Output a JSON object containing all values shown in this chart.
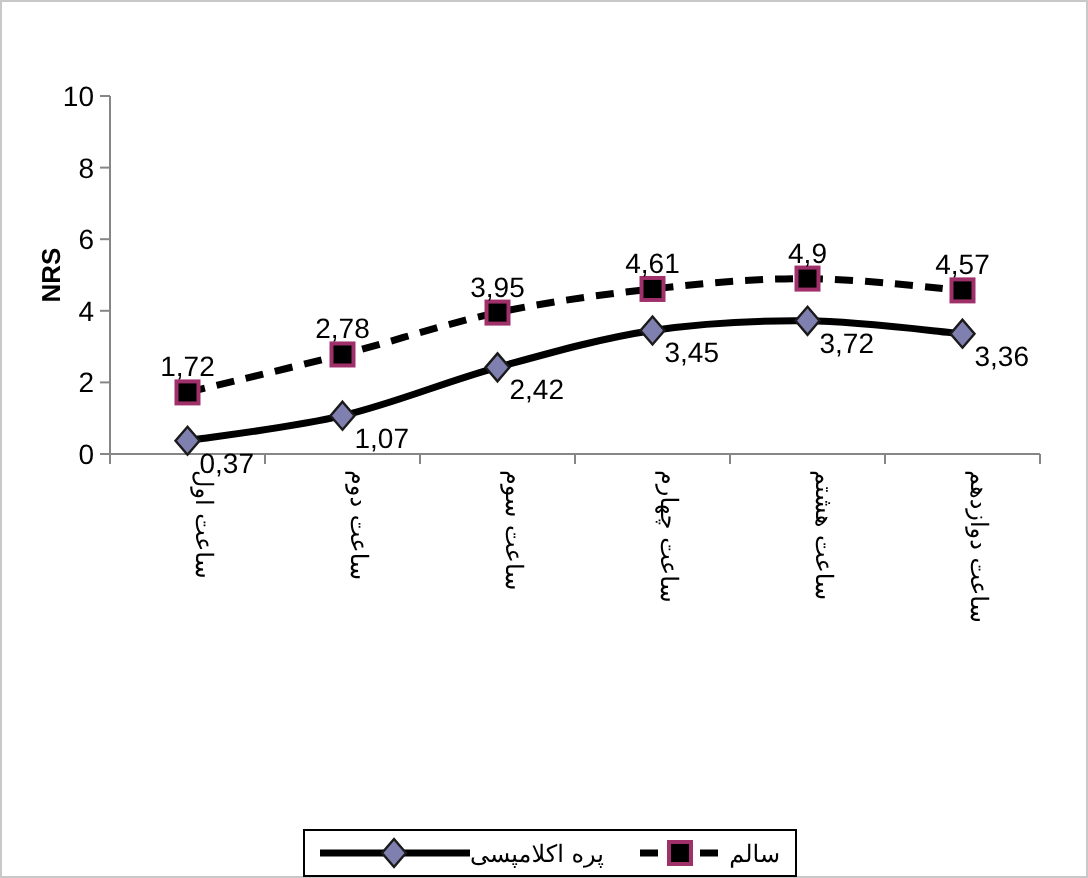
{
  "chart_data": {
    "type": "line",
    "ylabel": "NRS",
    "categories": [
      "ساعت اول",
      "ساعت دوم",
      "ساعت سوم",
      "ساعت چهارم",
      "ساعت هشتم",
      "ساعت دوازدهم"
    ],
    "series": [
      {
        "name": "پره اکلامپسی",
        "color": "#000000",
        "marker": "diamond",
        "line_style": "solid",
        "values": [
          0.37,
          1.07,
          2.42,
          3.45,
          3.72,
          3.36
        ],
        "value_labels": [
          "0,37",
          "1,07",
          "2,42",
          "3,45",
          "3,72",
          "3,36"
        ]
      },
      {
        "name": "سالم",
        "color": "#000000",
        "marker": "square",
        "line_style": "dashed",
        "values": [
          1.72,
          2.78,
          3.95,
          4.61,
          4.9,
          4.57
        ],
        "value_labels": [
          "1,72",
          "2,78",
          "3,95",
          "4,61",
          "4,9",
          "4,57"
        ]
      }
    ],
    "ylim": [
      0,
      10
    ],
    "yticks": [
      0,
      2,
      4,
      6,
      8,
      10
    ],
    "legend": "bottom",
    "grid": false
  }
}
